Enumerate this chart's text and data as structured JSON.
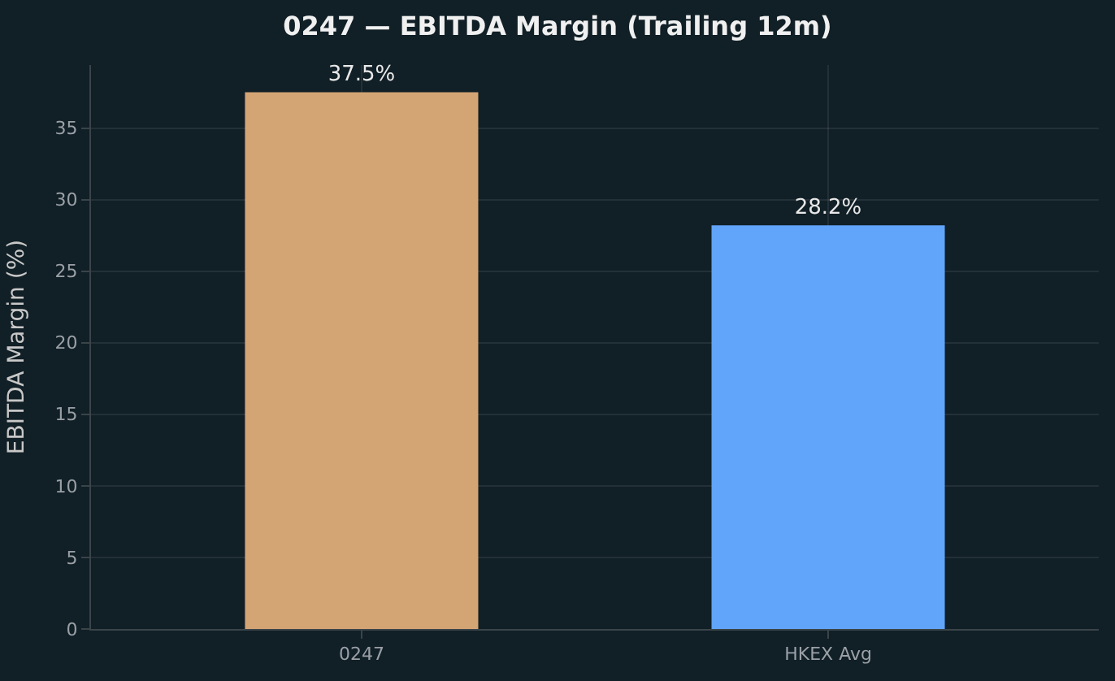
{
  "chart_data": {
    "type": "bar",
    "title": "0247 — EBITDA Margin (Trailing 12m)",
    "ylabel": "EBITDA Margin (%)",
    "categories": [
      "0247",
      "HKEX Avg"
    ],
    "values": [
      37.5,
      28.2
    ],
    "colors": [
      "#d4a574",
      "#60a5fa"
    ],
    "value_labels": [
      "37.5%",
      "28.2%"
    ],
    "ylim": [
      0,
      39.4
    ],
    "yticks": [
      0,
      5,
      10,
      15,
      20,
      25,
      30,
      35
    ],
    "grid": true
  }
}
